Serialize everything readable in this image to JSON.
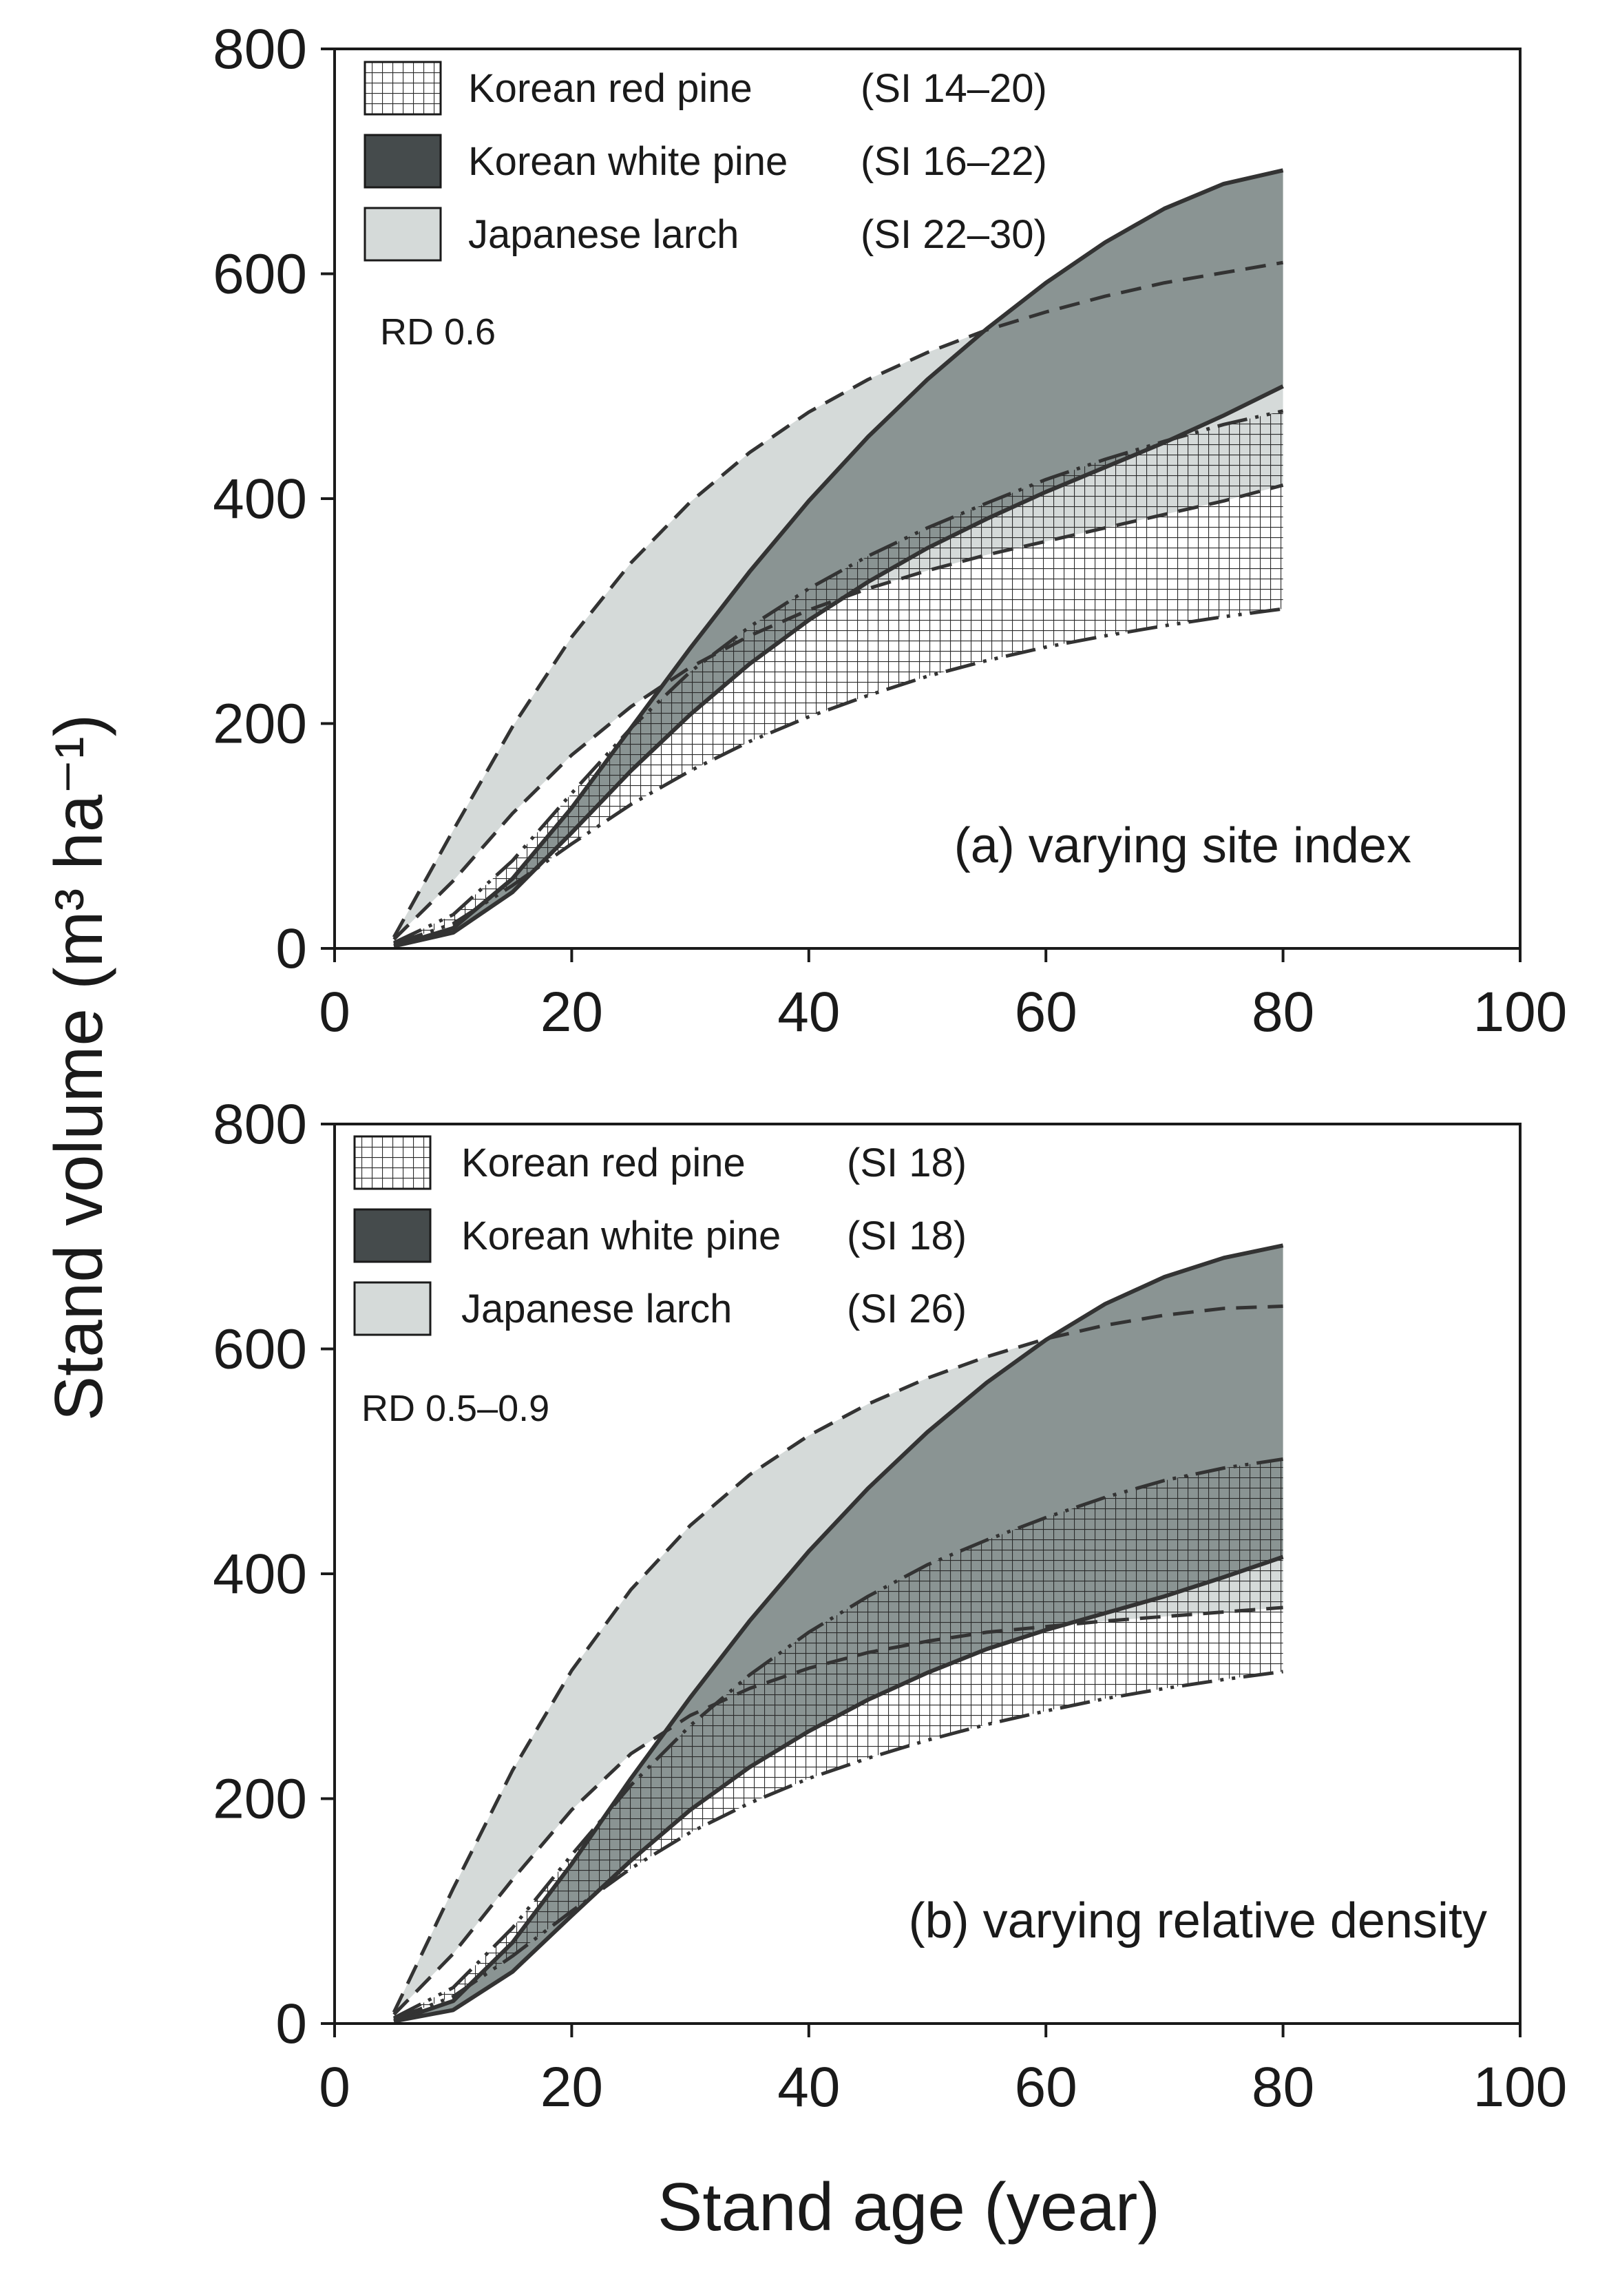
{
  "figure": {
    "ylabel": "Stand volume (m³ ha⁻¹)",
    "xlabel": "Stand age (year)"
  },
  "colors": {
    "korean_white_pine": "#8a9493",
    "japanese_larch": "#d5dad9",
    "korean_white_pine_swatch": "#454b4c",
    "line": "#333333",
    "hatch": "#2a2a2a"
  },
  "chart_data": [
    {
      "type": "area",
      "panel": "a",
      "annotation": "(a) varying site index",
      "condition": "RD 0.6",
      "xlim": [
        0,
        100
      ],
      "ylim": [
        0,
        800
      ],
      "xticks": [
        0,
        20,
        40,
        60,
        80,
        100
      ],
      "yticks": [
        0,
        200,
        400,
        600,
        800
      ],
      "legend_location": "top-left",
      "legend": [
        {
          "name": "Korean red pine",
          "range": "(SI 14–20)",
          "fill": "hatch"
        },
        {
          "name": "Korean white pine",
          "range": "(SI 16–22)",
          "fill": "dark"
        },
        {
          "name": "Japanese larch",
          "range": "(SI 22–30)",
          "fill": "light"
        }
      ],
      "x": [
        5,
        10,
        15,
        20,
        25,
        30,
        35,
        40,
        45,
        50,
        55,
        60,
        65,
        70,
        75,
        80
      ],
      "series": [
        {
          "name": "Japanese larch (SI 30)",
          "line": "dashed",
          "values": [
            10,
            105,
            197,
            277,
            343,
            397,
            441,
            477,
            506,
            530,
            550,
            566,
            580,
            592,
            601,
            610
          ]
        },
        {
          "name": "Japanese larch (SI 22)",
          "line": "dashed",
          "values": [
            8,
            60,
            120,
            172,
            215,
            250,
            278,
            301,
            320,
            336,
            350,
            362,
            374,
            386,
            398,
            412
          ]
        },
        {
          "name": "Korean white pine (SI 22)",
          "line": "solid",
          "values": [
            2,
            18,
            62,
            125,
            196,
            267,
            335,
            398,
            455,
            506,
            551,
            592,
            628,
            658,
            680,
            692
          ]
        },
        {
          "name": "Korean white pine (SI 16)",
          "line": "solid",
          "values": [
            2,
            14,
            50,
            103,
            158,
            208,
            253,
            292,
            326,
            356,
            382,
            406,
            428,
            450,
            474,
            500
          ]
        },
        {
          "name": "Korean red pine (SI 20)",
          "line": "long-dash-dot",
          "values": [
            5,
            30,
            78,
            138,
            196,
            246,
            286,
            320,
            349,
            374,
            396,
            417,
            435,
            451,
            466,
            478
          ]
        },
        {
          "name": "Korean red pine (SI 14)",
          "line": "long-dash-dot",
          "values": [
            4,
            22,
            56,
            93,
            128,
            158,
            184,
            206,
            225,
            242,
            256,
            268,
            278,
            287,
            295,
            302
          ]
        }
      ]
    },
    {
      "type": "area",
      "panel": "b",
      "annotation": "(b) varying relative density",
      "condition": "RD 0.5–0.9",
      "xlim": [
        0,
        100
      ],
      "ylim": [
        0,
        800
      ],
      "xticks": [
        0,
        20,
        40,
        60,
        80,
        100
      ],
      "yticks": [
        0,
        200,
        400,
        600,
        800
      ],
      "legend_location": "top-left",
      "legend": [
        {
          "name": "Korean red pine",
          "range": "(SI 18)",
          "fill": "hatch"
        },
        {
          "name": "Korean white pine",
          "range": "(SI 18)",
          "fill": "dark"
        },
        {
          "name": "Japanese larch",
          "range": "(SI 26)",
          "fill": "light"
        }
      ],
      "x": [
        5,
        10,
        15,
        20,
        25,
        30,
        35,
        40,
        45,
        50,
        55,
        60,
        65,
        70,
        75,
        80
      ],
      "series": [
        {
          "name": "Japanese larch (RD 0.9)",
          "line": "dashed",
          "values": [
            10,
            120,
            225,
            314,
            386,
            443,
            488,
            523,
            551,
            574,
            593,
            609,
            621,
            630,
            636,
            638
          ]
        },
        {
          "name": "Japanese larch (RD 0.5)",
          "line": "dashed",
          "values": [
            8,
            62,
            128,
            190,
            240,
            274,
            298,
            316,
            330,
            340,
            348,
            353,
            358,
            362,
            366,
            370
          ]
        },
        {
          "name": "Korean white pine (RD 0.9)",
          "line": "solid",
          "values": [
            2,
            20,
            72,
            142,
            218,
            290,
            358,
            420,
            476,
            526,
            570,
            608,
            640,
            664,
            681,
            692
          ]
        },
        {
          "name": "Korean white pine (RD 0.5)",
          "line": "solid",
          "values": [
            2,
            12,
            46,
            96,
            145,
            190,
            228,
            260,
            288,
            312,
            333,
            350,
            365,
            380,
            397,
            415
          ]
        },
        {
          "name": "Korean red pine (RD 0.9)",
          "line": "long-dash-dot",
          "values": [
            5,
            32,
            85,
            150,
            212,
            265,
            310,
            348,
            380,
            408,
            430,
            450,
            468,
            483,
            494,
            502
          ]
        },
        {
          "name": "Korean red pine (RD 0.5)",
          "line": "long-dash-dot",
          "values": [
            4,
            24,
            60,
            100,
            138,
            170,
            196,
            218,
            236,
            252,
            266,
            278,
            289,
            298,
            306,
            313
          ]
        }
      ]
    }
  ]
}
